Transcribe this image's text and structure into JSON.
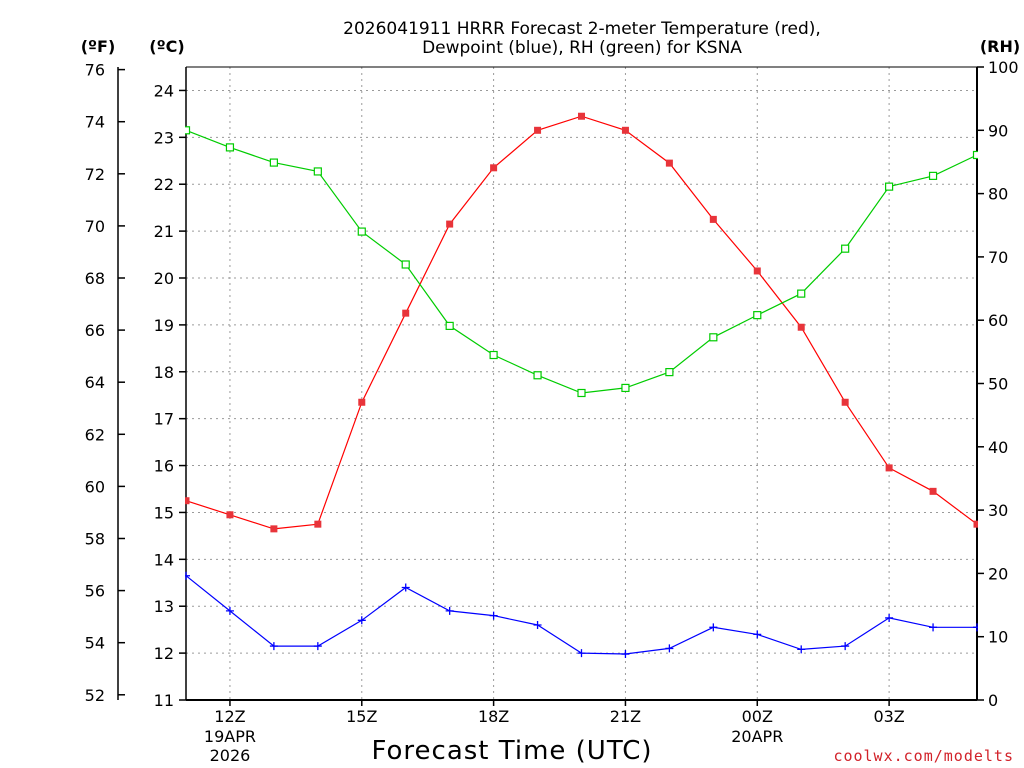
{
  "chart_data": {
    "type": "line",
    "title": [
      "2026041911 HRRR Forecast 2-meter Temperature (red),",
      "Dewpoint (blue), RH (green) for KSNA"
    ],
    "xlabel": "Forecast Time (UTC)",
    "credit": "coolwx.com/modelts",
    "units": {
      "fahrenheit": "(ºF)",
      "celsius": "(ºC)",
      "rh": "(RH)"
    },
    "x_hours": [
      11,
      12,
      13,
      14,
      15,
      16,
      17,
      18,
      19,
      20,
      21,
      22,
      23,
      24,
      25,
      26,
      27,
      28,
      29
    ],
    "x_tick_hours": [
      12,
      15,
      18,
      21,
      24,
      27
    ],
    "x_tick_labels": [
      "12Z",
      "15Z",
      "18Z",
      "21Z",
      "00Z",
      "03Z"
    ],
    "x_date_labels": [
      {
        "hour": 12,
        "lines": [
          "19APR",
          "2026"
        ]
      },
      {
        "hour": 24,
        "lines": [
          "20APR"
        ]
      }
    ],
    "xlim": [
      11,
      29
    ],
    "celsius_axis": {
      "ylim": [
        11,
        24.5
      ],
      "ticks": [
        11,
        12,
        13,
        14,
        15,
        16,
        17,
        18,
        19,
        20,
        21,
        22,
        23,
        24
      ]
    },
    "fahrenheit_axis": {
      "ticks": [
        52,
        54,
        56,
        58,
        60,
        62,
        64,
        66,
        68,
        70,
        72,
        74,
        76
      ]
    },
    "rh_axis": {
      "ylim": [
        0,
        100
      ],
      "ticks": [
        0,
        10,
        20,
        30,
        40,
        50,
        60,
        70,
        80,
        90,
        100
      ]
    },
    "series": [
      {
        "name": "Temperature",
        "axis": "celsius",
        "color": "#ff0000",
        "marker": "filled-square",
        "values": [
          15.25,
          14.95,
          14.65,
          14.75,
          17.35,
          19.25,
          21.15,
          22.35,
          23.15,
          23.45,
          23.15,
          22.45,
          21.25,
          20.15,
          18.95,
          17.35,
          15.95,
          15.45,
          14.75
        ]
      },
      {
        "name": "Dewpoint",
        "axis": "celsius",
        "color": "#0000ff",
        "marker": "plus",
        "values": [
          13.65,
          12.9,
          12.15,
          12.15,
          12.7,
          13.4,
          12.9,
          12.8,
          12.6,
          12.0,
          11.98,
          12.1,
          12.55,
          12.4,
          12.08,
          12.15,
          12.75,
          12.55,
          12.55
        ]
      },
      {
        "name": "RH",
        "axis": "rh",
        "color": "#00cc00",
        "marker": "open-square",
        "values": [
          90,
          87.3,
          84.9,
          83.5,
          74,
          68.8,
          59.1,
          54.5,
          51.3,
          48.5,
          49.3,
          51.8,
          57.3,
          60.8,
          64.2,
          71.3,
          81.1,
          82.8,
          86.1
        ]
      }
    ],
    "grid": true
  }
}
